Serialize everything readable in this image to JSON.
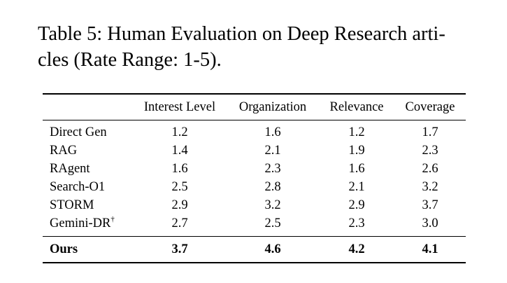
{
  "caption": {
    "line1": "Table 5: Human Evaluation on Deep Research arti-",
    "line2": "cles (Rate Range: 1-5)."
  },
  "table": {
    "columns": [
      "",
      "Interest Level",
      "Organization",
      "Relevance",
      "Coverage"
    ],
    "rows": [
      {
        "method": "Direct Gen",
        "values": [
          "1.2",
          "1.6",
          "1.2",
          "1.7"
        ]
      },
      {
        "method": "RAG",
        "values": [
          "1.4",
          "2.1",
          "1.9",
          "2.3"
        ]
      },
      {
        "method": "RAgent",
        "values": [
          "1.6",
          "2.3",
          "1.6",
          "2.6"
        ]
      },
      {
        "method": "Search-O1",
        "values": [
          "2.5",
          "2.8",
          "2.1",
          "3.2"
        ]
      },
      {
        "method": "STORM",
        "values": [
          "2.9",
          "3.2",
          "2.9",
          "3.7"
        ]
      },
      {
        "method": "Gemini-DR",
        "method_sup": "†",
        "values": [
          "2.7",
          "2.5",
          "2.3",
          "3.0"
        ]
      }
    ],
    "final_row": {
      "method": "Ours",
      "values": [
        "3.7",
        "4.6",
        "4.2",
        "4.1"
      ]
    }
  }
}
